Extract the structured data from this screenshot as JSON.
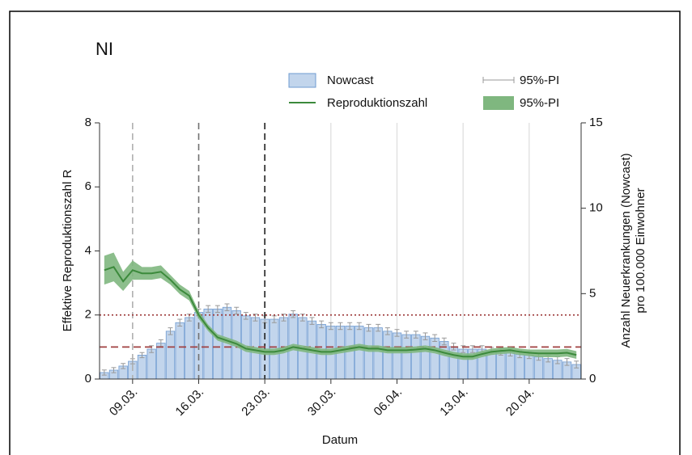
{
  "chart_data": {
    "type": "bar-line",
    "title": "NI",
    "xlabel": "Datum",
    "ylabel": "Effektive Reproduktionszahl R",
    "y2label": [
      "Anzahl Neuerkrankungen (Nowcast)",
      "pro 100.000 Einwohner"
    ],
    "categories": [
      null,
      null,
      null,
      "09.03.",
      null,
      null,
      null,
      null,
      null,
      null,
      "16.03.",
      null,
      null,
      null,
      null,
      null,
      null,
      "23.03.",
      null,
      null,
      null,
      null,
      null,
      null,
      "30.03.",
      null,
      null,
      null,
      null,
      null,
      null,
      "06.04.",
      null,
      null,
      null,
      null,
      null,
      null,
      "13.04.",
      null,
      null,
      null,
      null,
      null,
      null,
      "20.04.",
      null,
      null,
      null,
      null,
      null
    ],
    "ylim": [
      0,
      8
    ],
    "yticks": [
      0,
      2,
      4,
      6,
      8
    ],
    "y2lim": [
      0,
      15
    ],
    "y2ticks": [
      0,
      5,
      10,
      15
    ],
    "series": [
      {
        "name": "Nowcast",
        "type": "bar",
        "axis": "y2",
        "color": "#c2d5ec",
        "edge": "#6f9bd1",
        "values": [
          0.38,
          0.52,
          0.76,
          1.04,
          1.4,
          1.75,
          2.1,
          2.8,
          3.3,
          3.6,
          3.9,
          4.1,
          4.1,
          4.2,
          4.0,
          3.7,
          3.6,
          3.5,
          3.5,
          3.6,
          3.8,
          3.6,
          3.4,
          3.2,
          3.1,
          3.1,
          3.1,
          3.1,
          3.0,
          3.0,
          2.8,
          2.7,
          2.6,
          2.6,
          2.5,
          2.4,
          2.2,
          1.9,
          1.75,
          1.75,
          1.75,
          1.65,
          1.6,
          1.55,
          1.45,
          1.4,
          1.3,
          1.2,
          1.1,
          1.0,
          0.85
        ],
        "error_name": "95%-PI",
        "error_color": "#999999",
        "errors": [
          0.15,
          0.15,
          0.15,
          0.15,
          0.15,
          0.2,
          0.2,
          0.2,
          0.2,
          0.2,
          0.2,
          0.2,
          0.2,
          0.2,
          0.2,
          0.2,
          0.2,
          0.2,
          0.2,
          0.2,
          0.2,
          0.2,
          0.2,
          0.2,
          0.2,
          0.2,
          0.2,
          0.2,
          0.2,
          0.2,
          0.2,
          0.2,
          0.2,
          0.2,
          0.2,
          0.2,
          0.2,
          0.2,
          0.2,
          0.2,
          0.2,
          0.2,
          0.2,
          0.2,
          0.2,
          0.2,
          0.2,
          0.2,
          0.2,
          0.2,
          0.2
        ]
      },
      {
        "name": "Reproduktionszahl",
        "type": "line",
        "axis": "y",
        "color": "#3c8a3c",
        "values": [
          3.4,
          3.5,
          3.05,
          3.4,
          3.3,
          3.3,
          3.35,
          3.1,
          2.8,
          2.6,
          2.0,
          1.6,
          1.3,
          1.2,
          1.1,
          0.95,
          0.9,
          0.85,
          0.85,
          0.9,
          1.0,
          0.95,
          0.9,
          0.85,
          0.85,
          0.9,
          0.95,
          1.0,
          0.95,
          0.95,
          0.9,
          0.9,
          0.9,
          0.92,
          0.95,
          0.9,
          0.82,
          0.75,
          0.7,
          0.7,
          0.78,
          0.85,
          0.88,
          0.9,
          0.85,
          0.82,
          0.8,
          0.8,
          0.8,
          0.82,
          0.75
        ],
        "band_name": "95%-PI",
        "band_color": "#7fb77f",
        "lower": [
          2.95,
          3.05,
          2.75,
          3.1,
          3.1,
          3.1,
          3.15,
          2.95,
          2.65,
          2.45,
          1.88,
          1.5,
          1.2,
          1.1,
          1.0,
          0.85,
          0.8,
          0.75,
          0.75,
          0.8,
          0.9,
          0.85,
          0.8,
          0.75,
          0.75,
          0.8,
          0.85,
          0.9,
          0.85,
          0.85,
          0.8,
          0.8,
          0.8,
          0.82,
          0.85,
          0.8,
          0.72,
          0.65,
          0.6,
          0.6,
          0.68,
          0.75,
          0.78,
          0.8,
          0.75,
          0.72,
          0.68,
          0.68,
          0.68,
          0.7,
          0.63
        ],
        "upper": [
          3.85,
          3.95,
          3.35,
          3.7,
          3.5,
          3.5,
          3.55,
          3.25,
          2.95,
          2.75,
          2.12,
          1.7,
          1.4,
          1.3,
          1.2,
          1.05,
          1.0,
          0.95,
          0.95,
          1.0,
          1.1,
          1.05,
          1.0,
          0.95,
          0.95,
          1.0,
          1.05,
          1.1,
          1.05,
          1.05,
          1.0,
          1.0,
          1.0,
          1.02,
          1.05,
          1.0,
          0.92,
          0.85,
          0.8,
          0.8,
          0.88,
          0.95,
          0.98,
          1.0,
          0.95,
          0.92,
          0.92,
          0.92,
          0.92,
          0.94,
          0.87
        ]
      }
    ],
    "hlines": [
      {
        "value": 2,
        "style": "dotted",
        "color": "#a04040"
      },
      {
        "value": 1,
        "style": "dashed",
        "color": "#a04040"
      }
    ],
    "vlines": [
      {
        "x": "09.03.",
        "color": "#b0b0b0"
      },
      {
        "x": "16.03.",
        "color": "#707070"
      },
      {
        "x": "23.03.",
        "color": "#202020"
      }
    ],
    "xgrid": true
  }
}
